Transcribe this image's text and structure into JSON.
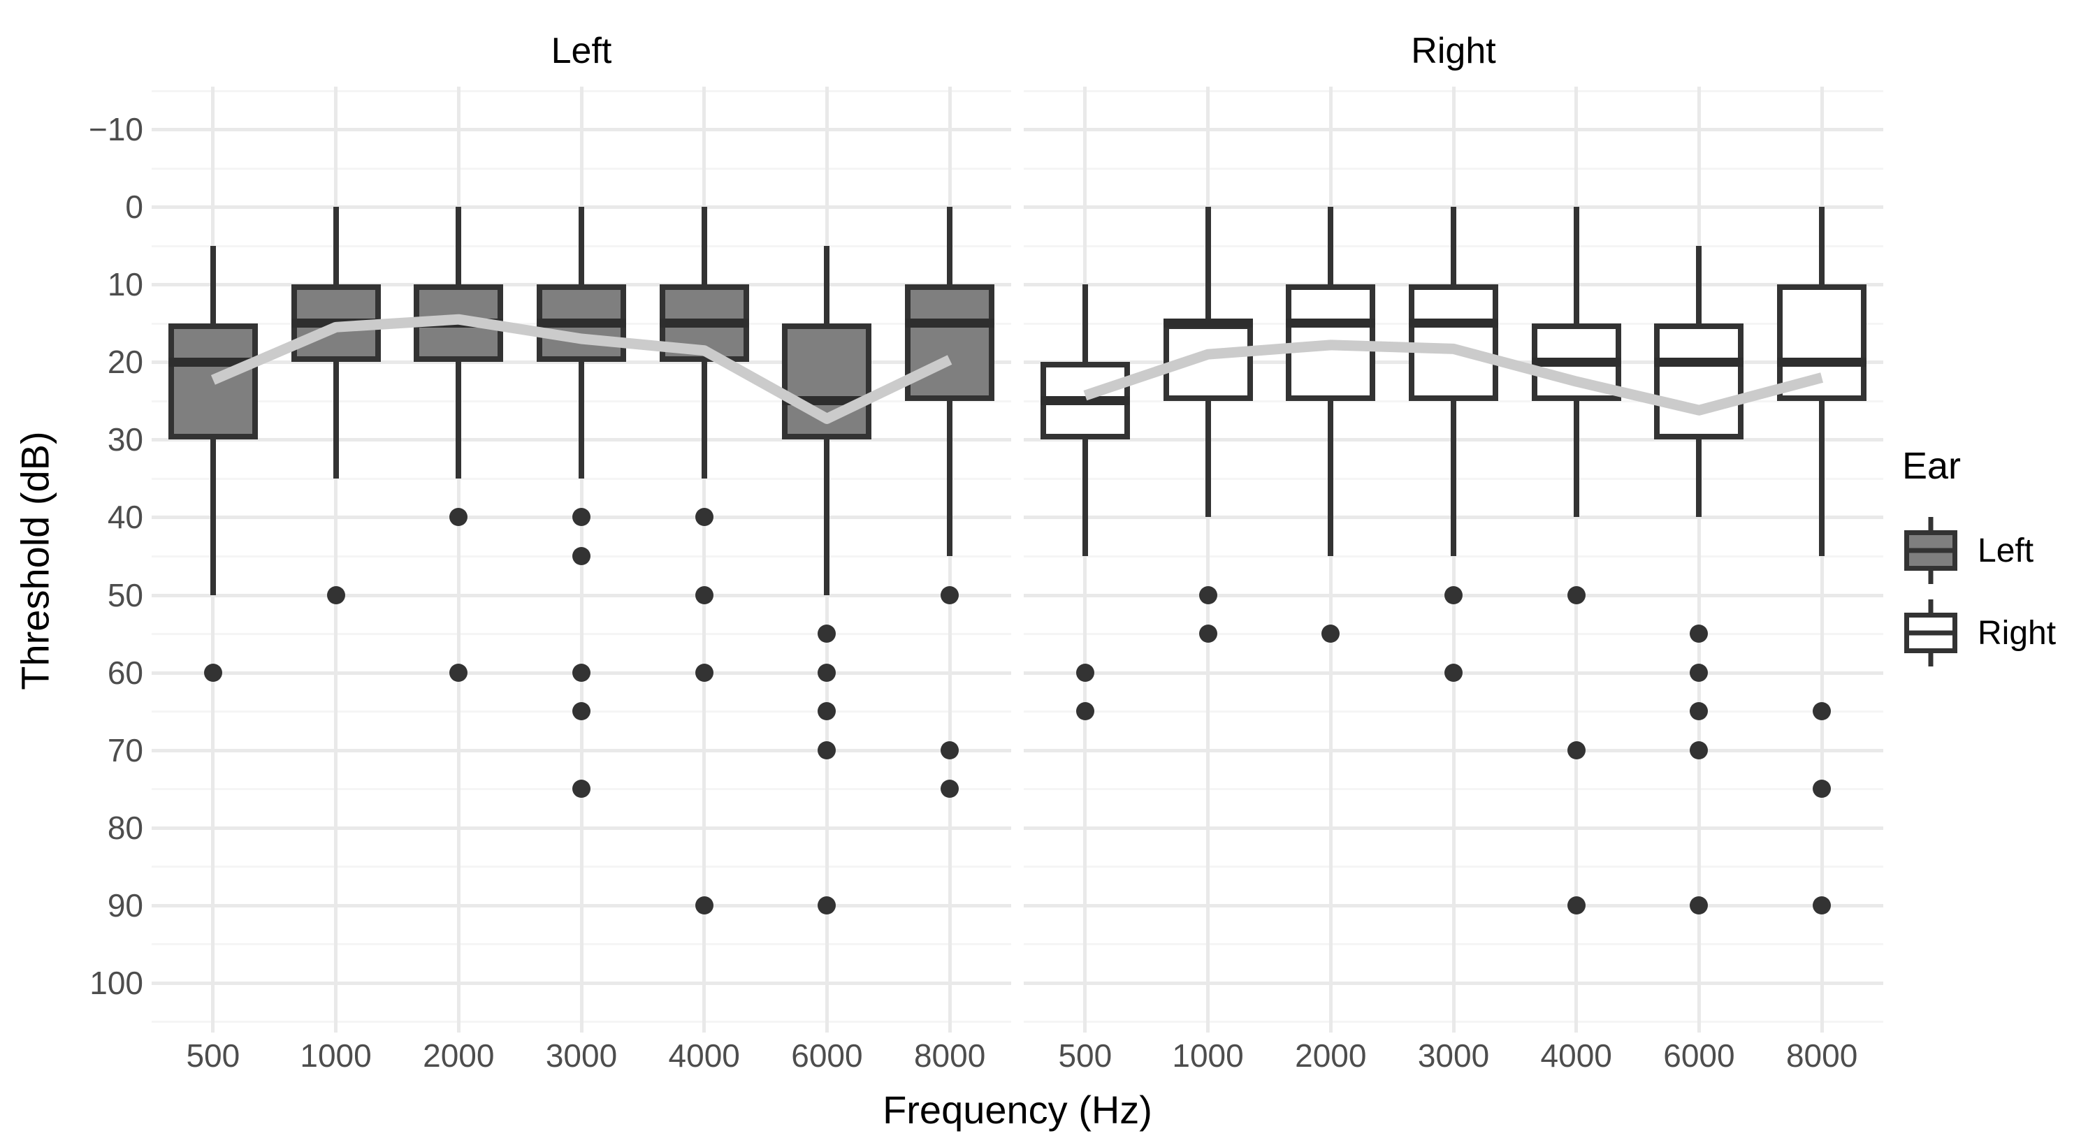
{
  "axes": {
    "y": {
      "title": "Threshold (dB)",
      "tick_labels": [
        "−10",
        "0",
        "10",
        "20",
        "30",
        "40",
        "50",
        "60",
        "70",
        "80",
        "90",
        "100"
      ],
      "tick_values": [
        -10,
        0,
        10,
        20,
        30,
        40,
        50,
        60,
        70,
        80,
        90,
        100
      ],
      "min": -15.5,
      "max": 105.5,
      "minor_step": 5,
      "reversed": true
    },
    "x": {
      "title": "Frequency (Hz)",
      "categories": [
        "500",
        "1000",
        "2000",
        "3000",
        "4000",
        "6000",
        "8000"
      ]
    }
  },
  "legend": {
    "title": "Ear",
    "items": [
      {
        "label": "Left",
        "fill": "#7f7f7f"
      },
      {
        "label": "Right",
        "fill": "#ffffff"
      }
    ]
  },
  "colors": {
    "box_border": "#333333",
    "median": "#2e2e2e",
    "whisker": "#333333",
    "outlier": "#333333",
    "trend_line": "#cbcbcb",
    "grid_major": "#e9e9e9",
    "grid_minor": "#f5f5f5",
    "tick_label": "#4d4d4d",
    "text": "#000000",
    "background": "#ffffff"
  },
  "chart_data": {
    "type": "boxplot",
    "title": "",
    "xlabel": "Frequency (Hz)",
    "ylabel": "Threshold (dB)",
    "ylim": [
      105.5,
      -15.5
    ],
    "grid": true,
    "legend_position": "right",
    "facets": [
      {
        "label": "Left",
        "fill": "#7f7f7f",
        "categories": [
          "500",
          "1000",
          "2000",
          "3000",
          "4000",
          "6000",
          "8000"
        ],
        "boxes": [
          {
            "freq": "500",
            "whisker_min": 5,
            "q1": 15,
            "median": 20,
            "q3": 30,
            "whisker_max": 50,
            "outliers": [
              60
            ]
          },
          {
            "freq": "1000",
            "whisker_min": 0,
            "q1": 10,
            "median": 15,
            "q3": 20,
            "whisker_max": 35,
            "outliers": [
              50
            ]
          },
          {
            "freq": "2000",
            "whisker_min": 0,
            "q1": 10,
            "median": 15,
            "q3": 20,
            "whisker_max": 35,
            "outliers": [
              40,
              60
            ]
          },
          {
            "freq": "3000",
            "whisker_min": 0,
            "q1": 10,
            "median": 15,
            "q3": 20,
            "whisker_max": 35,
            "outliers": [
              40,
              45,
              60,
              65,
              75
            ]
          },
          {
            "freq": "4000",
            "whisker_min": 0,
            "q1": 10,
            "median": 15,
            "q3": 20,
            "whisker_max": 35,
            "outliers": [
              40,
              50,
              60,
              90
            ]
          },
          {
            "freq": "6000",
            "whisker_min": 5,
            "q1": 15,
            "median": 25,
            "q3": 30,
            "whisker_max": 50,
            "outliers": [
              55,
              60,
              65,
              70,
              90
            ]
          },
          {
            "freq": "8000",
            "whisker_min": 0,
            "q1": 10,
            "median": 15,
            "q3": 25,
            "whisker_max": 45,
            "outliers": [
              50,
              70,
              75
            ]
          }
        ],
        "mean_line": [
          22.3,
          15.5,
          14.5,
          17.0,
          18.5,
          27.3,
          19.7
        ]
      },
      {
        "label": "Right",
        "fill": "#ffffff",
        "categories": [
          "500",
          "1000",
          "2000",
          "3000",
          "4000",
          "6000",
          "8000"
        ],
        "boxes": [
          {
            "freq": "500",
            "whisker_min": 10,
            "q1": 20,
            "median": 25,
            "q3": 30,
            "whisker_max": 45,
            "outliers": [
              60,
              65
            ]
          },
          {
            "freq": "1000",
            "whisker_min": 0,
            "q1": 15,
            "median": 15,
            "q3": 25,
            "whisker_max": 40,
            "outliers": [
              50,
              55
            ]
          },
          {
            "freq": "2000",
            "whisker_min": 0,
            "q1": 10,
            "median": 15,
            "q3": 25,
            "whisker_max": 45,
            "outliers": [
              55
            ]
          },
          {
            "freq": "3000",
            "whisker_min": 0,
            "q1": 10,
            "median": 15,
            "q3": 25,
            "whisker_max": 45,
            "outliers": [
              50,
              60
            ]
          },
          {
            "freq": "4000",
            "whisker_min": 0,
            "q1": 15,
            "median": 20,
            "q3": 25,
            "whisker_max": 40,
            "outliers": [
              50,
              70,
              90
            ]
          },
          {
            "freq": "6000",
            "whisker_min": 5,
            "q1": 15,
            "median": 20,
            "q3": 30,
            "whisker_max": 40,
            "outliers": [
              55,
              60,
              65,
              70,
              90
            ]
          },
          {
            "freq": "8000",
            "whisker_min": 0,
            "q1": 10,
            "median": 20,
            "q3": 25,
            "whisker_max": 45,
            "outliers": [
              65,
              75,
              90
            ]
          }
        ],
        "mean_line": [
          24.3,
          19.0,
          17.8,
          18.3,
          22.5,
          26.2,
          22.0
        ]
      }
    ]
  }
}
